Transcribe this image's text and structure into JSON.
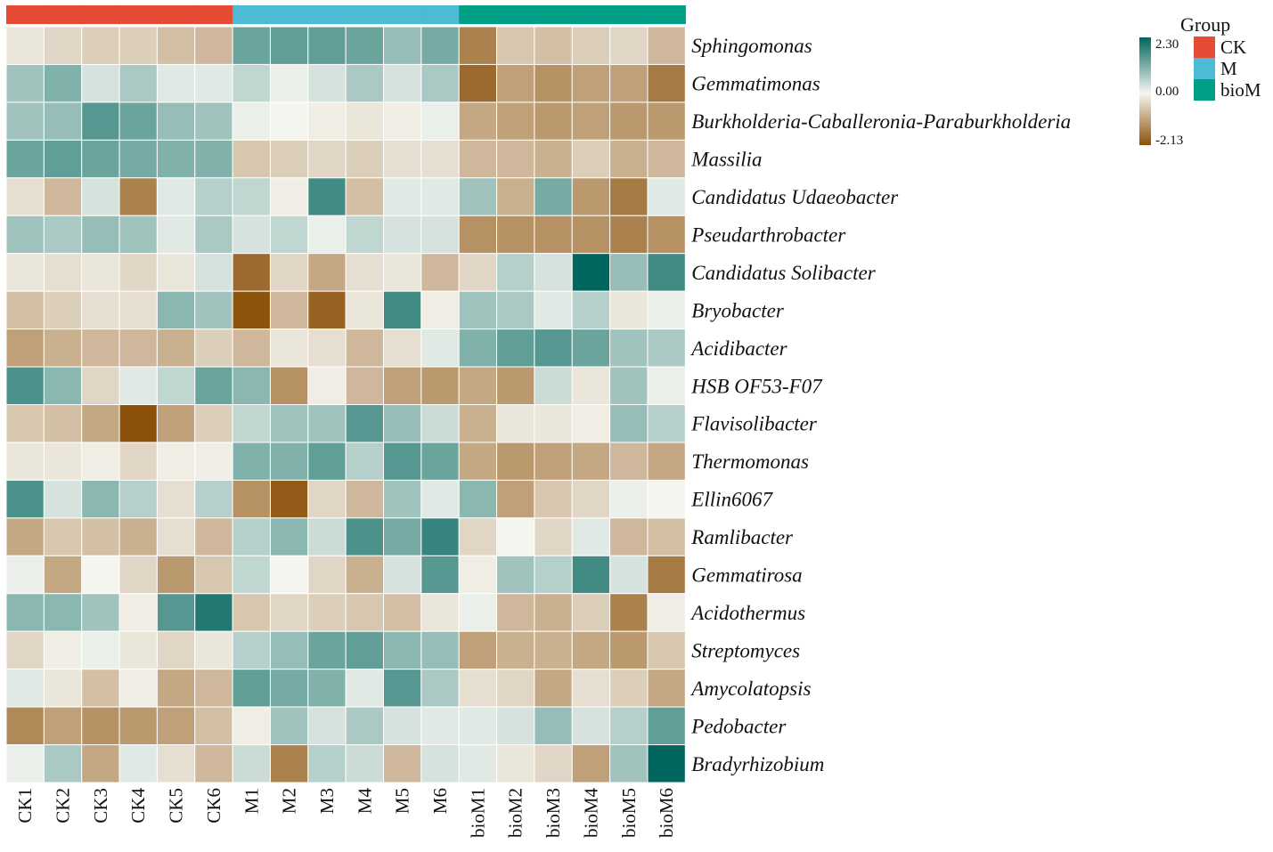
{
  "chart_data": {
    "type": "heatmap",
    "title": "",
    "columns": [
      "CK1",
      "CK2",
      "CK3",
      "CK4",
      "CK5",
      "CK6",
      "M1",
      "M2",
      "M3",
      "M4",
      "M5",
      "M6",
      "bioM1",
      "bioM2",
      "bioM3",
      "bioM4",
      "bioM5",
      "bioM6"
    ],
    "column_groups": [
      "CK",
      "CK",
      "CK",
      "CK",
      "CK",
      "CK",
      "M",
      "M",
      "M",
      "M",
      "M",
      "M",
      "bioM",
      "bioM",
      "bioM",
      "bioM",
      "bioM",
      "bioM"
    ],
    "rows": [
      "Sphingomonas",
      "Gemmatimonas",
      "Burkholderia-Caballeronia-Paraburkholderia",
      "Massilia",
      "Candidatus Udaeobacter",
      "Pseudarthrobacter",
      "Candidatus Solibacter",
      "Bryobacter",
      "Acidibacter",
      "HSB OF53-F07",
      "Flavisolibacter",
      "Thermomonas",
      "Ellin6067",
      "Ramlibacter",
      "Gemmatirosa",
      "Acidothermus",
      "Streptomyces",
      "Amycolatopsis",
      "Pedobacter",
      "Bradyrhizobium"
    ],
    "values": [
      [
        -0.2,
        -0.4,
        -0.5,
        -0.5,
        -0.7,
        -0.8,
        1.3,
        1.4,
        1.4,
        1.3,
        0.9,
        1.2,
        -1.5,
        -0.6,
        -0.7,
        -0.5,
        -0.4,
        -0.8
      ],
      [
        0.8,
        1.1,
        0.3,
        0.7,
        0.2,
        0.2,
        0.5,
        0.1,
        0.3,
        0.7,
        0.3,
        0.7,
        -1.8,
        -1.1,
        -1.3,
        -1.1,
        -1.1,
        -1.6
      ],
      [
        0.8,
        0.9,
        1.5,
        1.3,
        0.9,
        0.8,
        0.1,
        0.0,
        -0.1,
        -0.2,
        -0.1,
        0.1,
        -1.0,
        -1.1,
        -1.2,
        -1.1,
        -1.2,
        -1.2
      ],
      [
        1.3,
        1.4,
        1.3,
        1.2,
        1.1,
        1.1,
        -0.6,
        -0.5,
        -0.4,
        -0.5,
        -0.3,
        -0.3,
        -0.8,
        -0.8,
        -0.9,
        -0.5,
        -0.9,
        -0.8
      ],
      [
        -0.3,
        -0.8,
        0.3,
        -1.5,
        0.2,
        0.6,
        0.5,
        -0.1,
        1.7,
        -0.7,
        0.2,
        0.2,
        0.8,
        -0.9,
        1.2,
        -1.2,
        -1.6,
        0.2
      ],
      [
        0.8,
        0.7,
        0.9,
        0.8,
        0.2,
        0.7,
        0.3,
        0.5,
        0.1,
        0.5,
        0.3,
        0.3,
        -1.3,
        -1.3,
        -1.3,
        -1.3,
        -1.5,
        -1.3
      ],
      [
        -0.2,
        -0.3,
        -0.2,
        -0.4,
        -0.2,
        0.3,
        -1.8,
        -0.4,
        -1.0,
        -0.3,
        -0.2,
        -0.8,
        -0.4,
        0.6,
        0.3,
        2.3,
        0.9,
        1.7
      ],
      [
        -0.7,
        -0.5,
        -0.3,
        -0.3,
        1.0,
        0.8,
        -2.1,
        -0.8,
        -1.9,
        -0.2,
        1.7,
        -0.1,
        0.8,
        0.7,
        0.2,
        0.6,
        -0.2,
        0.1
      ],
      [
        -1.1,
        -0.9,
        -0.8,
        -0.8,
        -0.9,
        -0.5,
        -0.8,
        -0.2,
        -0.3,
        -0.8,
        -0.3,
        0.2,
        1.1,
        1.4,
        1.5,
        1.3,
        0.8,
        0.7
      ],
      [
        1.6,
        1.0,
        -0.4,
        0.2,
        0.5,
        1.3,
        1.0,
        -1.3,
        -0.1,
        -0.8,
        -1.1,
        -1.2,
        -1.0,
        -1.2,
        0.4,
        -0.2,
        0.8,
        0.1
      ],
      [
        -0.6,
        -0.7,
        -1.0,
        -2.13,
        -1.1,
        -0.5,
        0.5,
        0.8,
        0.8,
        1.5,
        0.9,
        0.4,
        -0.9,
        -0.2,
        -0.2,
        -0.1,
        0.9,
        0.6
      ],
      [
        -0.2,
        -0.2,
        -0.1,
        -0.4,
        -0.1,
        -0.1,
        1.1,
        1.1,
        1.4,
        0.6,
        1.5,
        1.3,
        -1.0,
        -1.2,
        -1.1,
        -1.0,
        -0.8,
        -1.0
      ],
      [
        1.6,
        0.3,
        1.0,
        0.6,
        -0.3,
        0.6,
        -1.3,
        -2.0,
        -0.4,
        -0.8,
        0.8,
        0.2,
        1.0,
        -1.1,
        -0.6,
        -0.4,
        0.1,
        0.0
      ],
      [
        -1.0,
        -0.6,
        -0.7,
        -0.9,
        -0.3,
        -0.8,
        0.6,
        1.0,
        0.4,
        1.6,
        1.2,
        1.8,
        -0.4,
        0.0,
        -0.4,
        0.2,
        -0.8,
        -0.7
      ],
      [
        0.1,
        -1.0,
        0.0,
        -0.4,
        -1.2,
        -0.6,
        0.5,
        0.0,
        -0.4,
        -0.9,
        0.3,
        1.5,
        -0.1,
        0.8,
        0.6,
        1.7,
        0.3,
        -1.6
      ],
      [
        1.0,
        1.0,
        0.8,
        -0.1,
        1.5,
        2.0,
        -0.6,
        -0.4,
        -0.5,
        -0.6,
        -0.7,
        -0.2,
        0.1,
        -0.8,
        -0.9,
        -0.5,
        -1.5,
        -0.1
      ],
      [
        -0.4,
        -0.1,
        0.1,
        -0.2,
        -0.4,
        -0.2,
        0.6,
        0.9,
        1.3,
        1.4,
        1.0,
        0.9,
        -1.1,
        -0.9,
        -0.9,
        -1.0,
        -1.2,
        -0.6
      ],
      [
        0.2,
        -0.2,
        -0.7,
        -0.1,
        -1.0,
        -0.8,
        1.4,
        1.2,
        1.1,
        0.2,
        1.5,
        0.7,
        -0.3,
        -0.4,
        -1.0,
        -0.3,
        -0.5,
        -1.0
      ],
      [
        -1.4,
        -1.1,
        -1.3,
        -1.2,
        -1.1,
        -0.7,
        -0.1,
        0.8,
        0.3,
        0.7,
        0.3,
        0.2,
        0.2,
        0.3,
        0.9,
        0.3,
        0.6,
        1.4
      ],
      [
        0.1,
        0.7,
        -1.0,
        0.2,
        -0.3,
        -0.8,
        0.4,
        -1.5,
        0.6,
        0.4,
        -0.8,
        0.3,
        0.2,
        -0.2,
        -0.4,
        -1.1,
        0.8,
        2.3
      ]
    ],
    "color_scale": {
      "min": -2.13,
      "mid": 0.0,
      "max": 2.3,
      "min_color": "#8c510a",
      "mid_color": "#f5f5f0",
      "max_color": "#01665e",
      "tick_labels": [
        "2.30",
        "0.00",
        "-2.13"
      ]
    },
    "group_legend": {
      "title": "Group",
      "entries": [
        {
          "name": "CK",
          "color": "#e64b35"
        },
        {
          "name": "M",
          "color": "#4dbbd5"
        },
        {
          "name": "bioM",
          "color": "#00a087"
        }
      ]
    },
    "grid_color": "#ffffff"
  }
}
